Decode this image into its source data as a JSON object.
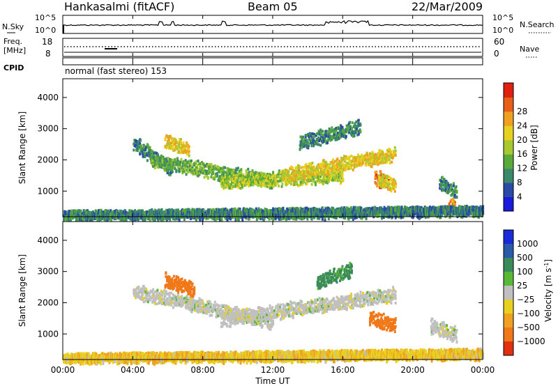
{
  "header": {
    "station": "Hankasalmi (fitACF)",
    "beam": "Beam 05",
    "date": "22/Mar/2009"
  },
  "panels": {
    "sky": {
      "label": "N.Sky",
      "left_ticks": [
        "10^5",
        "10^0"
      ],
      "right_ticks": [
        "10^5",
        "10^0"
      ],
      "right_label": "N.Search"
    },
    "freq": {
      "label_line1": "Freq.",
      "label_line2": "[MHz]",
      "left_ticks": [
        "18",
        "8"
      ],
      "right_ticks": [
        "60",
        "0"
      ],
      "right_label": "Nave"
    },
    "cpid": {
      "label": "CPID",
      "mode_text": "normal (fast stereo) 153"
    }
  },
  "axes": {
    "ylabel": "Slant Range [km]",
    "xlabel": "Time UT",
    "y_ticks": [
      "1000",
      "2000",
      "3000",
      "4000"
    ],
    "x_ticks": [
      "00:00",
      "04:00",
      "08:00",
      "12:00",
      "16:00",
      "20:00",
      "00:00"
    ]
  },
  "colorbars": {
    "power": {
      "label": "Power [dB]",
      "ticks": [
        "4",
        "8",
        "12",
        "16",
        "20",
        "24",
        "28"
      ],
      "colors": [
        "#1a1adc",
        "#2a4aa8",
        "#3a8a6a",
        "#5aaa3a",
        "#a8c830",
        "#e8d020",
        "#f0a020",
        "#e86018",
        "#e02010"
      ]
    },
    "velocity": {
      "label_main": "Velocity [m s",
      "label_sup": "-1",
      "label_end": "]",
      "ticks": [
        "1000",
        "500",
        "100",
        "25",
        "−25",
        "−100",
        "−500",
        "−1000"
      ],
      "colors": [
        "#1a2ad8",
        "#2a5aa8",
        "#3a8a5a",
        "#5ab838",
        "#c0c0c0",
        "#e8d020",
        "#f0a020",
        "#f07818",
        "#e03010"
      ]
    }
  },
  "chart_data": [
    {
      "type": "heatmap",
      "title": "",
      "quantity": "Power",
      "xlabel": "Time UT",
      "ylabel": "Slant Range [km]",
      "xlim_hours": [
        0,
        24
      ],
      "ylim_km": [
        180,
        4600
      ],
      "colorbar_ticks_dB": [
        4,
        8,
        12,
        16,
        20,
        24,
        28
      ],
      "scatter_regions": [
        {
          "t_start": 4.0,
          "t_end": 6.2,
          "r_start": 2600,
          "r_end": 1700,
          "power_dB": 8
        },
        {
          "t_start": 5.8,
          "t_end": 7.2,
          "r_start": 2650,
          "r_end": 2350,
          "power_dB": 20
        },
        {
          "t_start": 5.0,
          "t_end": 12.0,
          "r_start": 2000,
          "r_end": 1350,
          "power_dB": 12
        },
        {
          "t_start": 9.0,
          "t_end": 16.0,
          "r_start": 1350,
          "r_end": 1550,
          "power_dB": 16
        },
        {
          "t_start": 12.5,
          "t_end": 19.0,
          "r_start": 1550,
          "r_end": 2200,
          "power_dB": 20
        },
        {
          "t_start": 13.5,
          "t_end": 17.0,
          "r_start": 2600,
          "r_end": 3100,
          "power_dB": 8
        },
        {
          "t_start": 17.8,
          "t_end": 18.6,
          "r_start": 1450,
          "r_end": 1350,
          "power_dB": 28
        },
        {
          "t_start": 18.0,
          "t_end": 19.0,
          "r_start": 1350,
          "r_end": 1250,
          "power_dB": 20
        },
        {
          "t_start": 21.5,
          "t_end": 22.5,
          "r_start": 1300,
          "r_end": 1000,
          "power_dB": 8
        },
        {
          "t_start": 22.0,
          "t_end": 22.4,
          "r_start": 600,
          "r_end": 550,
          "power_dB": 24
        },
        {
          "t_start": 0.0,
          "t_end": 24.0,
          "r_start": 300,
          "r_end": 450,
          "power_dB": 8
        }
      ]
    },
    {
      "type": "heatmap",
      "title": "",
      "quantity": "Velocity",
      "xlabel": "Time UT",
      "ylabel": "Slant Range [km]",
      "xlim_hours": [
        0,
        24
      ],
      "ylim_km": [
        180,
        4600
      ],
      "colorbar_ticks_ms": [
        1000,
        500,
        100,
        25,
        -25,
        -100,
        -500,
        -1000
      ],
      "scatter_regions": [
        {
          "t_start": 4.0,
          "t_end": 12.0,
          "r_start": 2400,
          "r_end": 1400,
          "velocity_ms": 0
        },
        {
          "t_start": 9.0,
          "t_end": 19.0,
          "r_start": 1500,
          "r_end": 2300,
          "velocity_ms": 0
        },
        {
          "t_start": 5.8,
          "t_end": 7.5,
          "r_start": 2750,
          "r_end": 2450,
          "velocity_ms": -500
        },
        {
          "t_start": 17.5,
          "t_end": 19.0,
          "r_start": 1550,
          "r_end": 1300,
          "velocity_ms": -300
        },
        {
          "t_start": 14.5,
          "t_end": 16.5,
          "r_start": 2700,
          "r_end": 3100,
          "velocity_ms": 80
        },
        {
          "t_start": 21.0,
          "t_end": 22.5,
          "r_start": 1300,
          "r_end": 1000,
          "velocity_ms": 0
        },
        {
          "t_start": 0.0,
          "t_end": 24.0,
          "r_start": 300,
          "r_end": 450,
          "velocity_ms": -50
        }
      ]
    }
  ]
}
